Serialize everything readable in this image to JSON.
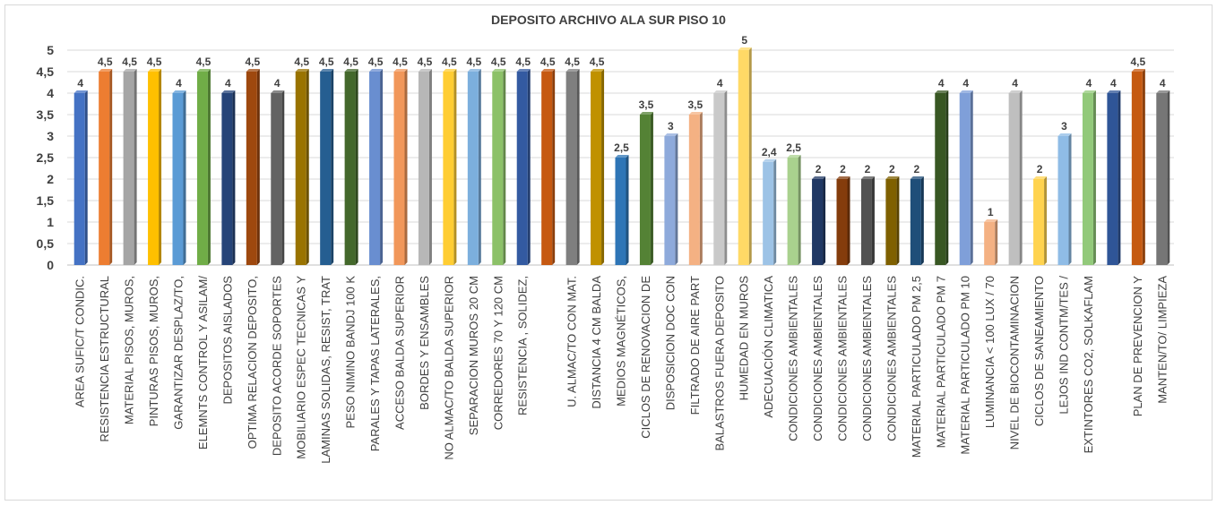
{
  "chart_data": {
    "type": "bar",
    "title": "DEPOSITO ARCHIVO ALA SUR PISO 10",
    "xlabel": "",
    "ylabel": "",
    "ylim": [
      0,
      5
    ],
    "yticks": [
      "0",
      "0,5",
      "1",
      "1,5",
      "2",
      "2,5",
      "3",
      "3,5",
      "4",
      "4,5",
      "5"
    ],
    "grid": true,
    "legend": "none",
    "categories": [
      "AREA SUFIC/T  CONDIC.",
      "RESISTENCIA ESTRUCTURAL",
      "MATERIAL PISOS, MUROS,",
      "PINTURAS PISOS, MUROS,",
      "GARANTIZAR DESPLAZ/TO,",
      "ELEMNTS CONTROL Y ASILAM/",
      "DEPOSITOS AISLADOS",
      "OPTIMA RELACION DEPOSITO,",
      "DEPOSITO ACORDE SOPORTES",
      "MOBILIARIO ESPEC TECNICAS Y",
      "LAMINAS SOLIDAS, RESIST, TRAT",
      "PESO NIMINO BANDJ 100 K",
      "PARALES Y TAPAS LATERALES,",
      "ACCESO BALDA SUPERIOR",
      "BORDES Y ENSAMBLES",
      "NO ALMAC/TO BALDA SUPERIOR",
      "SEPARACION MUROS 20 CM",
      "CORREDORES 70 Y 120 CM",
      "RESISTENCIA , SOLIDEZ,",
      "",
      "U. ALMAC/TO CON MAT.",
      "DISTANCIA 4 CM BALDA",
      "MEDIOS MAGNÉTICOS,",
      "CICLOS DE RENOVACION DE",
      "DISPOSICION DOC CON",
      "FILTRADO DE AIRE PART",
      "BALASTROS FUERA DEPOSITO",
      "HUMEDAD EN MUROS",
      "ADECUACIÓN CLIMATICA",
      "CONDICIONES AMBIENTALES",
      "CONDICIONES AMBIENTALES",
      "CONDICIONES AMBIENTALES",
      "CONDICIONES AMBIENTALES",
      "CONDICIONES AMBIENTALES",
      "MATERIAL PARTICULADO PM 2,5",
      "MATERIAL PARTICULADO PM 7",
      "MATERIAL PARTICULADO PM 10",
      "LUMINANCIA < 100 LUX / 70",
      "NIVEL DE BIOCONTAMINACION",
      "CICLOS DE SANEAMIENTO",
      "LEJOS IND CONTM/TES /",
      "EXTINTORES CO2, SOLKAFLAM",
      "",
      "PLAN DE PREVENCION Y",
      "MANTEN/TO/ LIMPIEZA"
    ],
    "values": [
      4,
      4.5,
      4.5,
      4.5,
      4,
      4.5,
      4,
      4.5,
      4,
      4.5,
      4.5,
      4.5,
      4.5,
      4.5,
      4.5,
      4.5,
      4.5,
      4.5,
      4.5,
      4.5,
      4.5,
      4.5,
      2.5,
      3.5,
      3,
      3.5,
      4,
      5,
      2.4,
      2.5,
      2,
      2,
      2,
      2,
      2,
      4,
      4,
      1,
      4,
      2,
      3,
      4,
      4,
      4.5,
      4
    ],
    "value_labels": [
      "4",
      "4,5",
      "4,5",
      "4,5",
      "4",
      "4,5",
      "4",
      "4,5",
      "4",
      "4,5",
      "4,5",
      "4,5",
      "4,5",
      "4,5",
      "4,5",
      "4,5",
      "4,5",
      "4,5",
      "4,5",
      "4,5",
      "4,5",
      "4,5",
      "2,5",
      "3,5",
      "3",
      "3,5",
      "4",
      "5",
      "2,4",
      "2,5",
      "2",
      "2",
      "2",
      "2",
      "2",
      "4",
      "4",
      "1",
      "4",
      "2",
      "3",
      "4",
      "4",
      "4,5",
      "4"
    ],
    "colors": [
      "#4472c4",
      "#ed7d31",
      "#a5a5a5",
      "#ffc000",
      "#5b9bd5",
      "#70ad47",
      "#264478",
      "#9e480e",
      "#636363",
      "#997300",
      "#255e91",
      "#43682b",
      "#698ed0",
      "#f1975a",
      "#b7b7b7",
      "#ffcd33",
      "#7cafdd",
      "#8cc168",
      "#335aa1",
      "#c65911",
      "#7f7f7f",
      "#c09100",
      "#2e75b6",
      "#548235",
      "#8eaadb",
      "#f4b183",
      "#c9c9c9",
      "#ffd966",
      "#9dc3e6",
      "#a9d18e",
      "#203864",
      "#843c0c",
      "#525252",
      "#7f6000",
      "#1f4e79",
      "#385723",
      "#7f9fd9",
      "#f4b183",
      "#bfbfbf",
      "#ffd34f",
      "#8fbce6",
      "#92c97a",
      "#2f5597",
      "#c55a11",
      "#767676"
    ]
  }
}
